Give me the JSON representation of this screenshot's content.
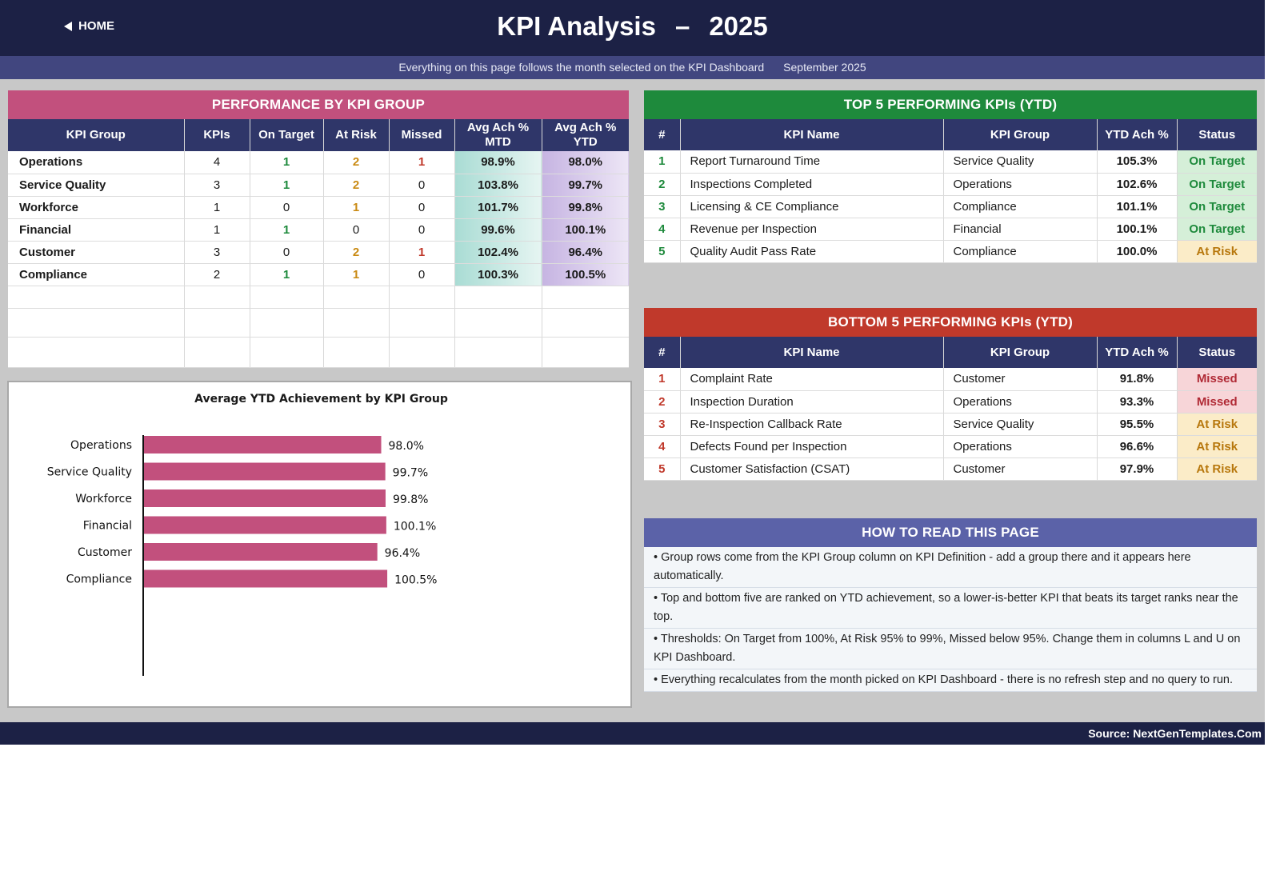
{
  "header": {
    "home_label": "HOME",
    "title": "KPI Analysis",
    "dash": "–",
    "year": "2025"
  },
  "subbar": {
    "note": "Everything on this page follows the month selected on the KPI Dashboard",
    "month": "September 2025"
  },
  "performance": {
    "title": "PERFORMANCE BY KPI GROUP",
    "headers": [
      "KPI Group",
      "KPIs",
      "On Target",
      "At Risk",
      "Missed",
      "Avg Ach % MTD",
      "Avg Ach % YTD"
    ],
    "rows": [
      {
        "group": "Operations",
        "kpis": "4",
        "on_target": "1",
        "at_risk": "2",
        "missed": "1",
        "mtd": "98.9%",
        "ytd": "98.0%"
      },
      {
        "group": "Service Quality",
        "kpis": "3",
        "on_target": "1",
        "at_risk": "2",
        "missed": "0",
        "mtd": "103.8%",
        "ytd": "99.7%"
      },
      {
        "group": "Workforce",
        "kpis": "1",
        "on_target": "0",
        "at_risk": "1",
        "missed": "0",
        "mtd": "101.7%",
        "ytd": "99.8%"
      },
      {
        "group": "Financial",
        "kpis": "1",
        "on_target": "1",
        "at_risk": "0",
        "missed": "0",
        "mtd": "99.6%",
        "ytd": "100.1%"
      },
      {
        "group": "Customer",
        "kpis": "3",
        "on_target": "0",
        "at_risk": "2",
        "missed": "1",
        "mtd": "102.4%",
        "ytd": "96.4%"
      },
      {
        "group": "Compliance",
        "kpis": "2",
        "on_target": "1",
        "at_risk": "1",
        "missed": "0",
        "mtd": "100.3%",
        "ytd": "100.5%"
      }
    ]
  },
  "chart_data": {
    "type": "bar",
    "orientation": "horizontal",
    "title": "Average YTD Achievement by KPI Group",
    "categories": [
      "Operations",
      "Service Quality",
      "Workforce",
      "Financial",
      "Customer",
      "Compliance"
    ],
    "values": [
      98.0,
      99.7,
      99.8,
      100.1,
      96.4,
      100.5
    ],
    "value_labels": [
      "98.0%",
      "99.7%",
      "99.8%",
      "100.1%",
      "96.4%",
      "100.5%"
    ],
    "bar_color": "#c2507d",
    "xlim": [
      0,
      156
    ],
    "grid": false
  },
  "top5": {
    "title": "TOP 5 PERFORMING KPIs  (YTD)",
    "headers": [
      "#",
      "KPI Name",
      "KPI Group",
      "YTD Ach %",
      "Status"
    ],
    "rows": [
      {
        "rank": "1",
        "name": "Report Turnaround Time",
        "group": "Service Quality",
        "ytd": "105.3%",
        "status": "On Target"
      },
      {
        "rank": "2",
        "name": "Inspections Completed",
        "group": "Operations",
        "ytd": "102.6%",
        "status": "On Target"
      },
      {
        "rank": "3",
        "name": "Licensing & CE Compliance",
        "group": "Compliance",
        "ytd": "101.1%",
        "status": "On Target"
      },
      {
        "rank": "4",
        "name": "Revenue per Inspection",
        "group": "Financial",
        "ytd": "100.1%",
        "status": "On Target"
      },
      {
        "rank": "5",
        "name": "Quality Audit Pass Rate",
        "group": "Compliance",
        "ytd": "100.0%",
        "status": "At Risk"
      }
    ]
  },
  "bottom5": {
    "title": "BOTTOM 5 PERFORMING KPIs  (YTD)",
    "headers": [
      "#",
      "KPI Name",
      "KPI Group",
      "YTD Ach %",
      "Status"
    ],
    "rows": [
      {
        "rank": "1",
        "name": "Complaint Rate",
        "group": "Customer",
        "ytd": "91.8%",
        "status": "Missed"
      },
      {
        "rank": "2",
        "name": "Inspection Duration",
        "group": "Operations",
        "ytd": "93.3%",
        "status": "Missed"
      },
      {
        "rank": "3",
        "name": "Re-Inspection Callback Rate",
        "group": "Service Quality",
        "ytd": "95.5%",
        "status": "At Risk"
      },
      {
        "rank": "4",
        "name": "Defects Found per Inspection",
        "group": "Operations",
        "ytd": "96.6%",
        "status": "At Risk"
      },
      {
        "rank": "5",
        "name": "Customer Satisfaction (CSAT)",
        "group": "Customer",
        "ytd": "97.9%",
        "status": "At Risk"
      }
    ]
  },
  "howto": {
    "title": "HOW TO READ THIS PAGE",
    "items": [
      "•  Group rows come from the KPI Group column on KPI Definition - add a group there and it appears here automatically.",
      "•  Top and bottom five are ranked on YTD achievement, so a lower-is-better KPI that beats its target ranks near the top.",
      "•  Thresholds: On Target from 100%, At Risk 95% to 99%, Missed below 95%. Change them in columns L and U on KPI Dashboard.",
      "•  Everything recalculates from the month picked on KPI Dashboard - there is no refresh step and no query to run."
    ]
  },
  "footer": {
    "source": "Source: NextGenTemplates.Com"
  }
}
